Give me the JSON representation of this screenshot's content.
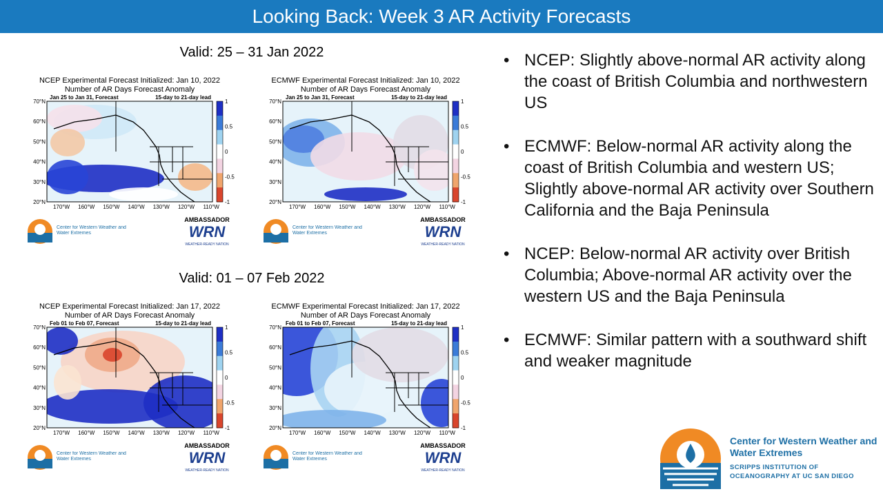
{
  "header": {
    "title": "Looking Back: Week 3 AR Activity Forecasts"
  },
  "rows": [
    {
      "valid": "Valid: 25 – 31 Jan 2022",
      "maps": [
        {
          "title": "NCEP Experimental Forecast Initialized: Jan 10, 2022",
          "subtitle": "Number of AR Days Forecast Anomaly",
          "period": "Jan 25 to Jan 31, Forecast",
          "lead": "15-day to 21-day lead"
        },
        {
          "title": "ECMWF Experimental Forecast Initialized: Jan 10, 2022",
          "subtitle": "Number of AR Days Forecast Anomaly",
          "period": "Jan 25 to Jan 31, Forecast",
          "lead": "15-day to 21-day lead"
        }
      ]
    },
    {
      "valid": "Valid: 01 – 07 Feb 2022",
      "maps": [
        {
          "title": "NCEP Experimental Forecast Initialized: Jan 17, 2022",
          "subtitle": "Number of AR Days Forecast Anomaly",
          "period": "Feb 01 to Feb 07, Forecast",
          "lead": "15-day to 21-day lead"
        },
        {
          "title": "ECMWF Experimental Forecast Initialized: Jan 17, 2022",
          "subtitle": "Number of AR Days Forecast Anomaly",
          "period": "Feb 01 to Feb 07, Forecast",
          "lead": "15-day to 21-day lead"
        }
      ]
    }
  ],
  "map_axes": {
    "lat": [
      "70°N",
      "60°N",
      "50°N",
      "40°N",
      "30°N",
      "20°N"
    ],
    "lon": [
      "170°W",
      "160°W",
      "150°W",
      "140°W",
      "130°W",
      "120°W",
      "110°W"
    ],
    "colorbar": [
      "1",
      "0.5",
      "0",
      "-0.5",
      "-1"
    ]
  },
  "panel_logos": {
    "cw3e": "Center for Western Weather and Water Extremes",
    "ambassador": "AMBASSADOR",
    "wrn": "WRN",
    "wrn_sub": "WEATHER-READY NATION"
  },
  "bullets": [
    "NCEP: Slightly above-normal AR activity along the coast of British Columbia and northwestern US",
    "ECMWF: Below-normal AR activity along the coast of British Columbia and western US; Slightly above-normal AR activity over Southern California and the Baja Peninsula",
    "NCEP: Below-normal AR activity over British Columbia; Above-normal AR activity over the western US and the Baja Peninsula",
    "ECMWF: Similar pattern with a southward shift and weaker magnitude"
  ],
  "logo": {
    "name": "Center for Western Weather and Water Extremes",
    "affiliation": "SCRIPPS INSTITUTION OF OCEANOGRAPHY AT UC SAN DIEGO"
  }
}
